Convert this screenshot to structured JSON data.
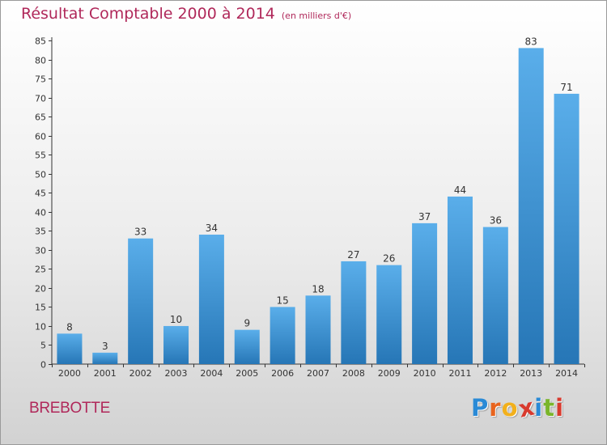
{
  "title": "Résultat Comptable 2000 à 2014",
  "unit_label": "(en milliers d'€)",
  "place_name": "BREBOTTE",
  "logo": {
    "text": "Proxiti",
    "letter_colors": [
      "#2a8ad6",
      "#e8641e",
      "#f2b01c",
      "#d83a2e",
      "#2a8ad6",
      "#7ab52a",
      "#d83a2e"
    ]
  },
  "colors": {
    "title": "#b0285a",
    "bar_top": "#5aaeea",
    "bar_bottom": "#2676b6",
    "axis": "#333333"
  },
  "chart_data": {
    "type": "bar",
    "title": "Résultat Comptable 2000 à 2014",
    "subtitle": "(en milliers d'€)",
    "categories": [
      "2000",
      "2001",
      "2002",
      "2003",
      "2004",
      "2005",
      "2006",
      "2007",
      "2008",
      "2009",
      "2010",
      "2011",
      "2012",
      "2013",
      "2014"
    ],
    "values": [
      8,
      3,
      33,
      10,
      34,
      9,
      15,
      18,
      27,
      26,
      37,
      44,
      36,
      83,
      71
    ],
    "ylim": [
      0,
      85
    ],
    "yticks": [
      0,
      5,
      10,
      15,
      20,
      25,
      30,
      35,
      40,
      45,
      50,
      55,
      60,
      65,
      70,
      75,
      80,
      85
    ],
    "data_labels": true,
    "grid": false
  }
}
